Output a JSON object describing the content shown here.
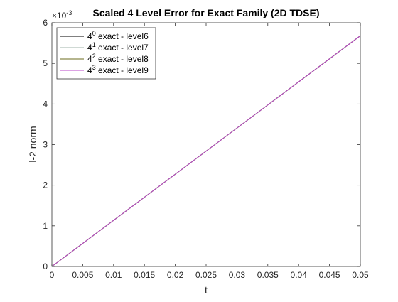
{
  "chart_data": {
    "type": "line",
    "title": "Scaled 4 Level Error for Exact Family (2D TDSE)",
    "xlabel": "t",
    "ylabel": "l-2 norm",
    "y_exponent_label": "×10",
    "y_exponent": "-3",
    "xlim": [
      0,
      0.05
    ],
    "ylim": [
      0,
      0.006
    ],
    "x_ticks": [
      0,
      0.005,
      0.01,
      0.015,
      0.02,
      0.025,
      0.03,
      0.035,
      0.04,
      0.045,
      0.05
    ],
    "x_tick_labels": [
      "0",
      "0.005",
      "0.01",
      "0.015",
      "0.02",
      "0.025",
      "0.03",
      "0.035",
      "0.04",
      "0.045",
      "0.05"
    ],
    "y_ticks": [
      0,
      0.001,
      0.002,
      0.003,
      0.004,
      0.005,
      0.006
    ],
    "y_tick_labels": [
      "0",
      "1",
      "2",
      "3",
      "4",
      "5",
      "6"
    ],
    "grid": false,
    "legend_position": "top-left",
    "series": [
      {
        "base": "4",
        "power": "0",
        "label": " exact - level6",
        "color": "#000000",
        "x": [
          0,
          0.05
        ],
        "y": [
          0,
          0.00568
        ]
      },
      {
        "base": "4",
        "power": "1",
        "label": " exact - level7",
        "color": "#9fb3a8",
        "x": [
          0,
          0.05
        ],
        "y": [
          0,
          0.00568
        ]
      },
      {
        "base": "4",
        "power": "2",
        "label": " exact - level8",
        "color": "#6b6b1e",
        "x": [
          0,
          0.05
        ],
        "y": [
          0,
          0.00568
        ]
      },
      {
        "base": "4",
        "power": "3",
        "label": " exact - level9",
        "color": "#b845c8",
        "x": [
          0,
          0.05
        ],
        "y": [
          0,
          0.00568
        ]
      }
    ]
  }
}
